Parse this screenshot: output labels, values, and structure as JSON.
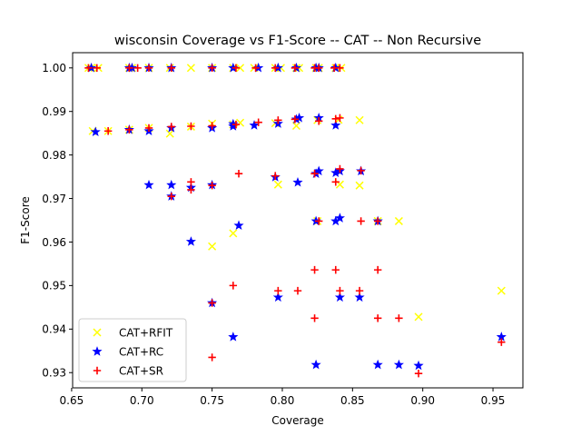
{
  "chart_data": {
    "type": "scatter",
    "title": "wisconsin Coverage vs F1-Score -- CAT -- Non Recursive",
    "xlabel": "Coverage",
    "ylabel": "F1-Score",
    "xlim": [
      0.6507,
      0.9713
    ],
    "ylim": [
      0.9265,
      1.0035
    ],
    "xticks": [
      "0.65",
      "0.70",
      "0.75",
      "0.80",
      "0.85",
      "0.90",
      "0.95"
    ],
    "xtick_values": [
      0.65,
      0.7,
      0.75,
      0.8,
      0.85,
      0.9,
      0.95
    ],
    "yticks": [
      "0.93",
      "0.94",
      "0.95",
      "0.96",
      "0.97",
      "0.98",
      "0.99",
      "1.00"
    ],
    "ytick_values": [
      0.93,
      0.94,
      0.95,
      0.96,
      0.97,
      0.98,
      0.99,
      1.0
    ],
    "grid": false,
    "legend_placement": "lower-left",
    "series": [
      {
        "name": "CAT+RFIT",
        "marker": "x",
        "color": "#ffff00",
        "points": [
          [
            0.662,
            1.0
          ],
          [
            0.664,
            1.0
          ],
          [
            0.669,
            1.0
          ],
          [
            0.691,
            1.0
          ],
          [
            0.693,
            1.0
          ],
          [
            0.705,
            1.0
          ],
          [
            0.72,
            1.0
          ],
          [
            0.735,
            1.0
          ],
          [
            0.75,
            1.0
          ],
          [
            0.765,
            1.0
          ],
          [
            0.77,
            1.0
          ],
          [
            0.78,
            1.0
          ],
          [
            0.795,
            1.0
          ],
          [
            0.799,
            1.0
          ],
          [
            0.81,
            1.0
          ],
          [
            0.812,
            1.0
          ],
          [
            0.824,
            1.0
          ],
          [
            0.826,
            1.0
          ],
          [
            0.838,
            1.0
          ],
          [
            0.842,
            1.0
          ],
          [
            0.665,
            0.9855
          ],
          [
            0.676,
            0.9855
          ],
          [
            0.691,
            0.9858
          ],
          [
            0.705,
            0.9862
          ],
          [
            0.72,
            0.9849
          ],
          [
            0.735,
            0.9865
          ],
          [
            0.75,
            0.9872
          ],
          [
            0.765,
            0.987
          ],
          [
            0.77,
            0.9874
          ],
          [
            0.795,
            0.9873
          ],
          [
            0.81,
            0.9867
          ],
          [
            0.825,
            0.988
          ],
          [
            0.84,
            0.9881
          ],
          [
            0.855,
            0.988
          ],
          [
            0.797,
            0.9732
          ],
          [
            0.841,
            0.9732
          ],
          [
            0.855,
            0.973
          ],
          [
            0.825,
            0.9648
          ],
          [
            0.868,
            0.9648
          ],
          [
            0.883,
            0.9648
          ],
          [
            0.765,
            0.962
          ],
          [
            0.75,
            0.959
          ],
          [
            0.956,
            0.9488
          ],
          [
            0.897,
            0.9428
          ]
        ]
      },
      {
        "name": "CAT+RC",
        "marker": "star",
        "color": "#0000ff",
        "points": [
          [
            0.664,
            1.0
          ],
          [
            0.691,
            1.0
          ],
          [
            0.693,
            1.0
          ],
          [
            0.705,
            1.0
          ],
          [
            0.721,
            1.0
          ],
          [
            0.75,
            1.0
          ],
          [
            0.765,
            1.0
          ],
          [
            0.783,
            1.0
          ],
          [
            0.797,
            1.0
          ],
          [
            0.81,
            1.0
          ],
          [
            0.824,
            1.0
          ],
          [
            0.826,
            1.0
          ],
          [
            0.838,
            1.0
          ],
          [
            0.667,
            0.9853
          ],
          [
            0.691,
            0.9858
          ],
          [
            0.705,
            0.9855
          ],
          [
            0.721,
            0.9862
          ],
          [
            0.75,
            0.9862
          ],
          [
            0.765,
            0.9871
          ],
          [
            0.765,
            0.9866
          ],
          [
            0.78,
            0.9868
          ],
          [
            0.797,
            0.9872
          ],
          [
            0.81,
            0.9882
          ],
          [
            0.812,
            0.9885
          ],
          [
            0.826,
            0.9885
          ],
          [
            0.838,
            0.9868
          ],
          [
            0.705,
            0.9731
          ],
          [
            0.721,
            0.9731
          ],
          [
            0.735,
            0.9725
          ],
          [
            0.75,
            0.9731
          ],
          [
            0.795,
            0.9749
          ],
          [
            0.811,
            0.9737
          ],
          [
            0.824,
            0.9757
          ],
          [
            0.826,
            0.9763
          ],
          [
            0.838,
            0.9759
          ],
          [
            0.841,
            0.9763
          ],
          [
            0.856,
            0.9763
          ],
          [
            0.721,
            0.9705
          ],
          [
            0.769,
            0.9638
          ],
          [
            0.735,
            0.9601
          ],
          [
            0.824,
            0.9648
          ],
          [
            0.838,
            0.9648
          ],
          [
            0.841,
            0.9655
          ],
          [
            0.868,
            0.9648
          ],
          [
            0.75,
            0.946
          ],
          [
            0.797,
            0.9473
          ],
          [
            0.841,
            0.9473
          ],
          [
            0.855,
            0.9473
          ],
          [
            0.765,
            0.9382
          ],
          [
            0.824,
            0.9318
          ],
          [
            0.868,
            0.9318
          ],
          [
            0.883,
            0.9318
          ],
          [
            0.897,
            0.9316
          ],
          [
            0.956,
            0.9382
          ]
        ]
      },
      {
        "name": "CAT+SR",
        "marker": "plus",
        "color": "#ff0000",
        "points": [
          [
            0.662,
            1.0
          ],
          [
            0.668,
            1.0
          ],
          [
            0.691,
            1.0
          ],
          [
            0.697,
            1.0
          ],
          [
            0.705,
            1.0
          ],
          [
            0.721,
            1.0
          ],
          [
            0.75,
            1.0
          ],
          [
            0.767,
            1.0
          ],
          [
            0.781,
            1.0
          ],
          [
            0.795,
            1.0
          ],
          [
            0.809,
            1.0
          ],
          [
            0.823,
            1.0
          ],
          [
            0.826,
            1.0
          ],
          [
            0.837,
            1.0
          ],
          [
            0.841,
            1.0
          ],
          [
            0.676,
            0.9855
          ],
          [
            0.691,
            0.9858
          ],
          [
            0.705,
            0.9862
          ],
          [
            0.721,
            0.9865
          ],
          [
            0.735,
            0.9866
          ],
          [
            0.75,
            0.9867
          ],
          [
            0.767,
            0.987
          ],
          [
            0.783,
            0.9875
          ],
          [
            0.797,
            0.988
          ],
          [
            0.809,
            0.9882
          ],
          [
            0.826,
            0.9878
          ],
          [
            0.838,
            0.9883
          ],
          [
            0.841,
            0.9885
          ],
          [
            0.769,
            0.9757
          ],
          [
            0.795,
            0.9752
          ],
          [
            0.823,
            0.9757
          ],
          [
            0.838,
            0.9738
          ],
          [
            0.841,
            0.9768
          ],
          [
            0.856,
            0.9764
          ],
          [
            0.721,
            0.9705
          ],
          [
            0.735,
            0.9738
          ],
          [
            0.75,
            0.973
          ],
          [
            0.735,
            0.972
          ],
          [
            0.826,
            0.9648
          ],
          [
            0.856,
            0.9648
          ],
          [
            0.868,
            0.9648
          ],
          [
            0.823,
            0.9536
          ],
          [
            0.838,
            0.9536
          ],
          [
            0.868,
            0.9536
          ],
          [
            0.765,
            0.95
          ],
          [
            0.797,
            0.9488
          ],
          [
            0.811,
            0.9488
          ],
          [
            0.841,
            0.9488
          ],
          [
            0.855,
            0.9488
          ],
          [
            0.75,
            0.946
          ],
          [
            0.823,
            0.9425
          ],
          [
            0.868,
            0.9425
          ],
          [
            0.883,
            0.9425
          ],
          [
            0.75,
            0.9335
          ],
          [
            0.897,
            0.9298
          ],
          [
            0.956,
            0.937
          ]
        ]
      }
    ]
  }
}
